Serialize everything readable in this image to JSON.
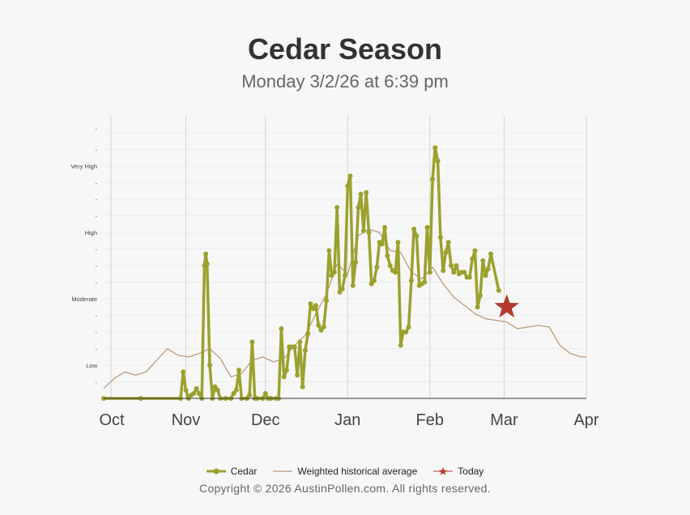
{
  "header": {
    "title": "Cedar Season",
    "subtitle": "Monday 3/2/26 at 6:39 pm"
  },
  "footer": {
    "copyright": "Copyright © 2026 AustinPollen.com.  All rights reserved."
  },
  "colors": {
    "cedar": "#9ba12d",
    "historical": "#b89474",
    "today": "#b33a2e",
    "grid": "#d4d4d4",
    "axis": "#333333"
  },
  "chart_data": {
    "type": "line",
    "title": "Cedar Season",
    "subtitle": "Monday 3/2/26 at 6:39 pm",
    "x_axis": {
      "type": "date",
      "range": [
        "2025-10-01",
        "2026-04-01"
      ],
      "tick_labels": [
        "Oct",
        "Nov",
        "Dec",
        "Jan",
        "Feb",
        "Mar",
        "Apr"
      ],
      "tick_dates": [
        "2025-10-01",
        "2025-11-01",
        "2025-12-01",
        "2026-01-01",
        "2026-02-01",
        "2026-03-01",
        "2026-04-01"
      ]
    },
    "y_axis": {
      "range": [
        0,
        16
      ],
      "tick_positions": [
        1,
        2,
        3,
        4,
        5,
        6,
        7,
        8,
        9,
        10,
        11,
        12,
        13,
        14,
        15
      ],
      "tick_labels": [
        "-",
        "Low",
        "-",
        "-",
        "-",
        "Moderate",
        "-",
        "-",
        "-",
        "High",
        "-",
        "-",
        "-",
        "Very High",
        "-"
      ],
      "top_tick_extra": "-"
    },
    "grid": true,
    "legend": {
      "placement": "bottom",
      "entries": [
        "Cedar",
        "Weighted historical average",
        "Today"
      ]
    },
    "series": [
      {
        "name": "Cedar",
        "style": "thick line with markers",
        "points": [
          [
            "2025-10-01",
            0
          ],
          [
            "2025-10-15",
            0
          ],
          [
            "2025-10-30",
            0
          ],
          [
            "2025-10-31",
            1.6
          ],
          [
            "2025-11-01",
            0.5
          ],
          [
            "2025-11-02",
            0
          ],
          [
            "2025-11-03",
            0.2
          ],
          [
            "2025-11-04",
            0.3
          ],
          [
            "2025-11-05",
            0.6
          ],
          [
            "2025-11-06",
            0.3
          ],
          [
            "2025-11-07",
            0
          ],
          [
            "2025-11-08",
            8
          ],
          [
            "2025-11-08T12:00",
            8.7
          ],
          [
            "2025-11-09",
            8.1
          ],
          [
            "2025-11-10",
            2
          ],
          [
            "2025-11-11",
            0
          ],
          [
            "2025-11-12",
            0.7
          ],
          [
            "2025-11-13",
            0.5
          ],
          [
            "2025-11-14",
            0
          ],
          [
            "2025-11-16",
            0
          ],
          [
            "2025-11-18",
            0
          ],
          [
            "2025-11-19",
            0.3
          ],
          [
            "2025-11-20",
            0.5
          ],
          [
            "2025-11-21",
            1.7
          ],
          [
            "2025-11-22",
            0
          ],
          [
            "2025-11-24",
            0
          ],
          [
            "2025-11-25",
            0.2
          ],
          [
            "2025-11-26",
            3.4
          ],
          [
            "2025-11-27",
            0
          ],
          [
            "2025-11-28",
            0
          ],
          [
            "2025-11-30",
            0
          ],
          [
            "2025-12-01",
            0.3
          ],
          [
            "2025-12-02",
            0
          ],
          [
            "2025-12-03",
            0
          ],
          [
            "2025-12-05",
            0
          ],
          [
            "2025-12-06",
            0
          ],
          [
            "2025-12-07",
            4.2
          ],
          [
            "2025-12-08",
            1.3
          ],
          [
            "2025-12-09",
            1.7
          ],
          [
            "2025-12-10",
            3.1
          ],
          [
            "2025-12-11",
            3.1
          ],
          [
            "2025-12-12",
            3.1
          ],
          [
            "2025-12-13",
            1.4
          ],
          [
            "2025-12-14",
            3.4
          ],
          [
            "2025-12-15",
            0.7
          ],
          [
            "2025-12-16",
            2.9
          ],
          [
            "2025-12-17",
            3.9
          ],
          [
            "2025-12-18",
            5.7
          ],
          [
            "2025-12-19",
            5.4
          ],
          [
            "2025-12-20",
            5.6
          ],
          [
            "2025-12-21",
            4.4
          ],
          [
            "2025-12-22",
            4.1
          ],
          [
            "2025-12-23",
            4.3
          ],
          [
            "2025-12-24",
            5.9
          ],
          [
            "2025-12-25",
            8.9
          ],
          [
            "2025-12-26",
            7.4
          ],
          [
            "2025-12-27",
            7.6
          ],
          [
            "2025-12-28",
            11.5
          ],
          [
            "2025-12-29",
            6.4
          ],
          [
            "2025-12-30",
            6.6
          ],
          [
            "2025-12-31",
            7.4
          ],
          [
            "2026-01-01",
            12.8
          ],
          [
            "2026-01-02",
            13.4
          ],
          [
            "2026-01-03",
            6.8
          ],
          [
            "2026-01-04",
            8.2
          ],
          [
            "2026-01-05",
            11.5
          ],
          [
            "2026-01-06",
            12.3
          ],
          [
            "2026-01-07",
            10.1
          ],
          [
            "2026-01-08",
            12.4
          ],
          [
            "2026-01-09",
            10
          ],
          [
            "2026-01-10",
            6.9
          ],
          [
            "2026-01-11",
            7.1
          ],
          [
            "2026-01-12",
            7.9
          ],
          [
            "2026-01-13",
            9.4
          ],
          [
            "2026-01-14",
            9.3
          ],
          [
            "2026-01-15",
            10.3
          ],
          [
            "2026-01-16",
            8.6
          ],
          [
            "2026-01-17",
            8.0
          ],
          [
            "2026-01-18",
            7.7
          ],
          [
            "2026-01-19",
            7.6
          ],
          [
            "2026-01-20",
            9.4
          ],
          [
            "2026-01-21",
            3.2
          ],
          [
            "2026-01-22",
            4
          ],
          [
            "2026-01-23",
            4.0
          ],
          [
            "2026-01-24",
            4.3
          ],
          [
            "2026-01-25",
            7.1
          ],
          [
            "2026-01-26",
            10.2
          ],
          [
            "2026-01-27",
            9.8
          ],
          [
            "2026-01-28",
            6.8
          ],
          [
            "2026-01-29",
            6.9
          ],
          [
            "2026-01-30",
            7
          ],
          [
            "2026-01-31",
            10.3
          ],
          [
            "2026-02-01",
            7.6
          ],
          [
            "2026-02-02",
            13.2
          ],
          [
            "2026-02-03",
            15.1
          ],
          [
            "2026-02-04",
            14.3
          ],
          [
            "2026-02-05",
            9.7
          ],
          [
            "2026-02-06",
            7.7
          ],
          [
            "2026-02-07",
            8.8
          ],
          [
            "2026-02-08",
            9.4
          ],
          [
            "2026-02-09",
            8.0
          ],
          [
            "2026-02-10",
            7.6
          ],
          [
            "2026-02-11",
            8.0
          ],
          [
            "2026-02-12",
            7.5
          ],
          [
            "2026-02-13",
            7.6
          ],
          [
            "2026-02-14",
            7.6
          ],
          [
            "2026-02-15",
            7.3
          ],
          [
            "2026-02-16",
            7.3
          ],
          [
            "2026-02-17",
            8.4
          ],
          [
            "2026-02-18",
            8.9
          ],
          [
            "2026-02-19",
            5.5
          ],
          [
            "2026-02-20",
            6.2
          ],
          [
            "2026-02-21",
            8.3
          ],
          [
            "2026-02-22",
            7.4
          ],
          [
            "2026-02-23",
            7.8
          ],
          [
            "2026-02-24",
            8.7
          ],
          [
            "2026-02-27",
            6.5
          ]
        ]
      },
      {
        "name": "Weighted historical average",
        "style": "thin line",
        "points": [
          [
            "2025-10-01",
            0.6
          ],
          [
            "2025-10-05",
            1.2
          ],
          [
            "2025-10-09",
            1.6
          ],
          [
            "2025-10-13",
            1.4
          ],
          [
            "2025-10-17",
            1.6
          ],
          [
            "2025-10-21",
            2.3
          ],
          [
            "2025-10-25",
            3.0
          ],
          [
            "2025-10-29",
            2.6
          ],
          [
            "2025-11-02",
            2.5
          ],
          [
            "2025-11-06",
            2.7
          ],
          [
            "2025-11-10",
            3.0
          ],
          [
            "2025-11-14",
            2.4
          ],
          [
            "2025-11-18",
            1.3
          ],
          [
            "2025-11-22",
            1.5
          ],
          [
            "2025-11-26",
            2.3
          ],
          [
            "2025-11-30",
            2.5
          ],
          [
            "2025-12-04",
            2.2
          ],
          [
            "2025-12-08",
            2.4
          ],
          [
            "2025-12-12",
            3.2
          ],
          [
            "2025-12-16",
            3.8
          ],
          [
            "2025-12-20",
            5.1
          ],
          [
            "2025-12-24",
            6.3
          ],
          [
            "2025-12-28",
            8.1
          ],
          [
            "2026-01-01",
            7.5
          ],
          [
            "2026-01-05",
            9.8
          ],
          [
            "2026-01-09",
            10.2
          ],
          [
            "2026-01-13",
            10.0
          ],
          [
            "2026-01-17",
            8.9
          ],
          [
            "2026-01-21",
            8.8
          ],
          [
            "2026-01-25",
            7.6
          ],
          [
            "2026-01-29",
            7.2
          ],
          [
            "2026-02-02",
            7.9
          ],
          [
            "2026-02-06",
            6.9
          ],
          [
            "2026-02-10",
            6.1
          ],
          [
            "2026-02-14",
            5.6
          ],
          [
            "2026-02-18",
            5.1
          ],
          [
            "2026-02-22",
            4.8
          ],
          [
            "2026-02-26",
            4.7
          ],
          [
            "2026-03-02",
            4.6
          ],
          [
            "2026-03-06",
            4.2
          ],
          [
            "2026-03-10",
            4.3
          ],
          [
            "2026-03-14",
            4.4
          ],
          [
            "2026-03-18",
            4.3
          ],
          [
            "2026-03-22",
            3.2
          ],
          [
            "2026-03-26",
            2.7
          ],
          [
            "2026-03-30",
            2.5
          ],
          [
            "2026-04-01",
            2.5
          ]
        ]
      },
      {
        "name": "Today",
        "style": "star marker",
        "points": [
          [
            "2026-03-02",
            5.5
          ]
        ]
      }
    ]
  }
}
